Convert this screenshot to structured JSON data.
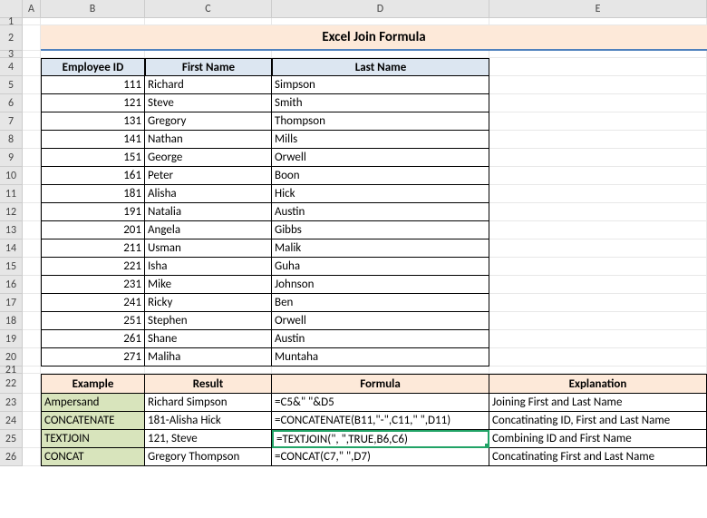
{
  "columns": [
    "A",
    "B",
    "C",
    "D",
    "E"
  ],
  "rows": [
    "1",
    "2",
    "3",
    "4",
    "5",
    "6",
    "7",
    "8",
    "9",
    "10",
    "11",
    "12",
    "13",
    "14",
    "15",
    "16",
    "17",
    "18",
    "19",
    "20",
    "21",
    "22",
    "23",
    "24",
    "25",
    "26"
  ],
  "title": "Excel Join Formula",
  "dataHeaders": {
    "b": "Employee ID",
    "c": "First Name",
    "d": "Last Name"
  },
  "dataRows": [
    {
      "id": "111",
      "first": "Richard",
      "last": "Simpson"
    },
    {
      "id": "121",
      "first": "Steve",
      "last": "Smith"
    },
    {
      "id": "131",
      "first": "Gregory",
      "last": "Thompson"
    },
    {
      "id": "141",
      "first": "Nathan",
      "last": "Mills"
    },
    {
      "id": "151",
      "first": "George",
      "last": "Orwell"
    },
    {
      "id": "161",
      "first": "Peter",
      "last": "Boon"
    },
    {
      "id": "181",
      "first": "Alisha",
      "last": "Hick"
    },
    {
      "id": "191",
      "first": "Natalia",
      "last": "Austin"
    },
    {
      "id": "201",
      "first": "Angela",
      "last": "Gibbs"
    },
    {
      "id": "211",
      "first": "Usman",
      "last": "Malik"
    },
    {
      "id": "221",
      "first": "Isha",
      "last": "Guha"
    },
    {
      "id": "231",
      "first": "Mike",
      "last": "Johnson"
    },
    {
      "id": "241",
      "first": "Ricky",
      "last": "Ben"
    },
    {
      "id": "251",
      "first": "Stephen",
      "last": "Orwell"
    },
    {
      "id": "261",
      "first": "Shane",
      "last": "Austin"
    },
    {
      "id": "271",
      "first": "Maliha",
      "last": "Muntaha"
    }
  ],
  "exampleHeaders": {
    "b": "Example",
    "c": "Result",
    "d": "Formula",
    "e": "Explanation"
  },
  "examples": [
    {
      "ex": "Ampersand",
      "result": "Richard Simpson",
      "formula": "=C5&\" \"&D5",
      "explain": "Joining First and Last Name"
    },
    {
      "ex": "CONCATENATE",
      "result": "181-Alisha Hick",
      "formula": "=CONCATENATE(B11,\"-\",C11,\" \",D11)",
      "explain": "Concatinating ID, First and Last Name"
    },
    {
      "ex": "TEXTJOIN",
      "result": "121, Steve",
      "formula": "=TEXTJOIN(\", \",TRUE,B6,C6)",
      "explain": "Combining ID and First Name"
    },
    {
      "ex": "CONCAT",
      "result": "Gregory Thompson",
      "formula": "=CONCAT(C7,\" \",D7)",
      "explain": "Concatinating First and Last Name"
    }
  ],
  "colors": {
    "title_bg": "#fde9d9",
    "title_border": "#4f81bd",
    "header_blue": "#dce6f1",
    "header_orange": "#fde9d9",
    "green": "#d8e4bc",
    "select": "#21a366"
  }
}
